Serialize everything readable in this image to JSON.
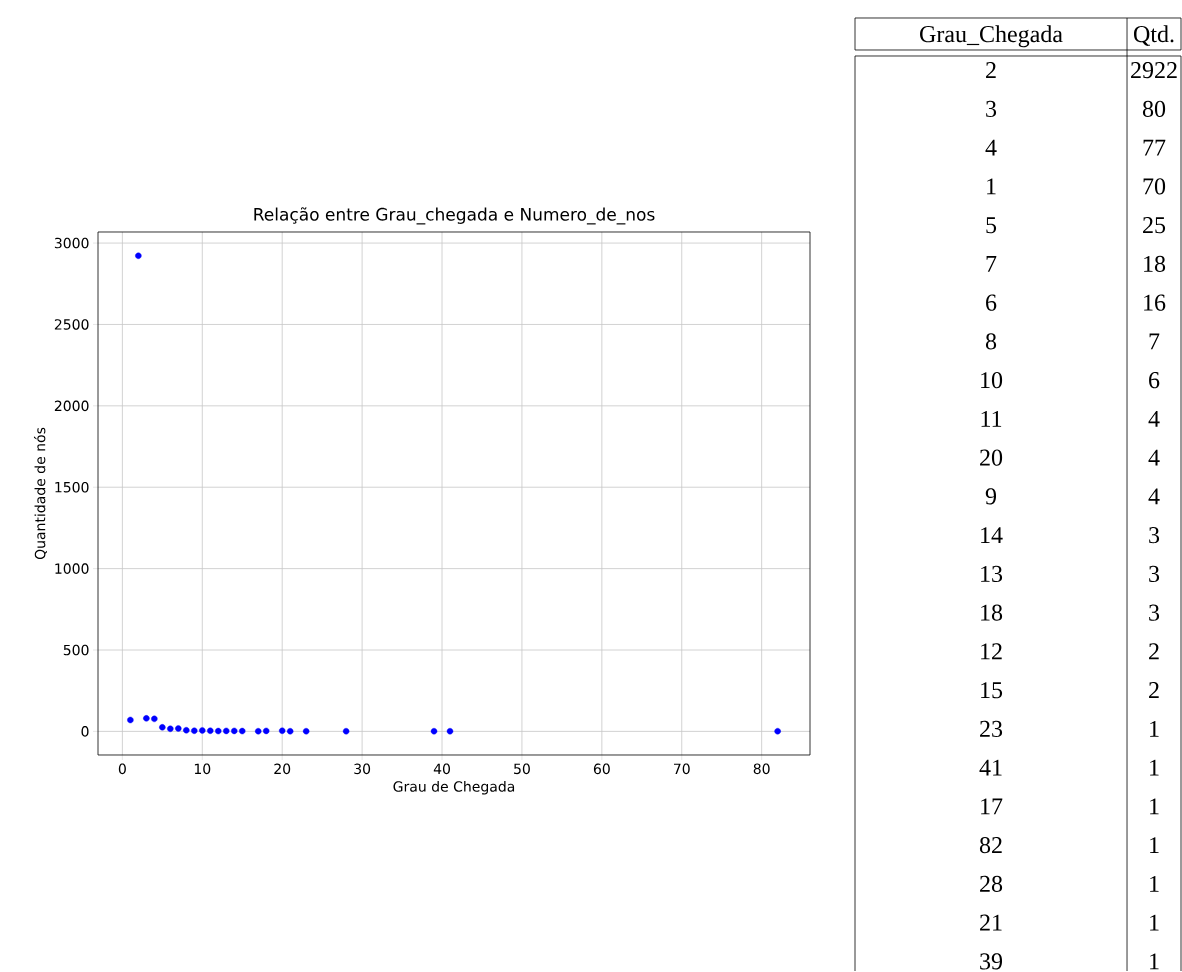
{
  "chart_data": [
    {
      "type": "scatter",
      "title": "Relação entre Grau_chegada e Numero_de_nos",
      "xlabel": "Grau de Chegada",
      "ylabel": "Quantidade de nós",
      "x": [
        2,
        3,
        4,
        1,
        5,
        7,
        6,
        8,
        10,
        11,
        20,
        9,
        14,
        13,
        18,
        12,
        15,
        23,
        41,
        17,
        82,
        28,
        21,
        39
      ],
      "values": [
        2922,
        80,
        77,
        70,
        25,
        18,
        16,
        7,
        6,
        4,
        4,
        4,
        3,
        3,
        3,
        2,
        2,
        1,
        1,
        1,
        1,
        1,
        1,
        1
      ],
      "color": "#0000ff",
      "marker": "circle",
      "grid": true,
      "xlim": [
        -3.05,
        86.05
      ],
      "xticks": [
        0,
        10,
        20,
        30,
        40,
        50,
        60,
        70,
        80
      ],
      "ylim": [
        -145.05,
        3068.05
      ],
      "yticks": [
        0,
        500,
        1000,
        1500,
        2000,
        2500,
        3000
      ]
    },
    {
      "type": "other",
      "annotations": [
        "Grau_Chegada",
        "Qtd.",
        "2",
        "2922",
        "3",
        "80",
        "4",
        "77",
        "1",
        "70",
        "5",
        "25",
        "7",
        "18",
        "6",
        "16",
        "8",
        "7",
        "10",
        "6",
        "11",
        "4",
        "20",
        "4",
        "9",
        "4",
        "14",
        "3",
        "13",
        "3",
        "18",
        "3",
        "12",
        "2",
        "15",
        "2",
        "23",
        "1",
        "41",
        "1",
        "17",
        "1",
        "82",
        "1",
        "28",
        "1",
        "21",
        "1",
        "39",
        "1"
      ]
    }
  ]
}
